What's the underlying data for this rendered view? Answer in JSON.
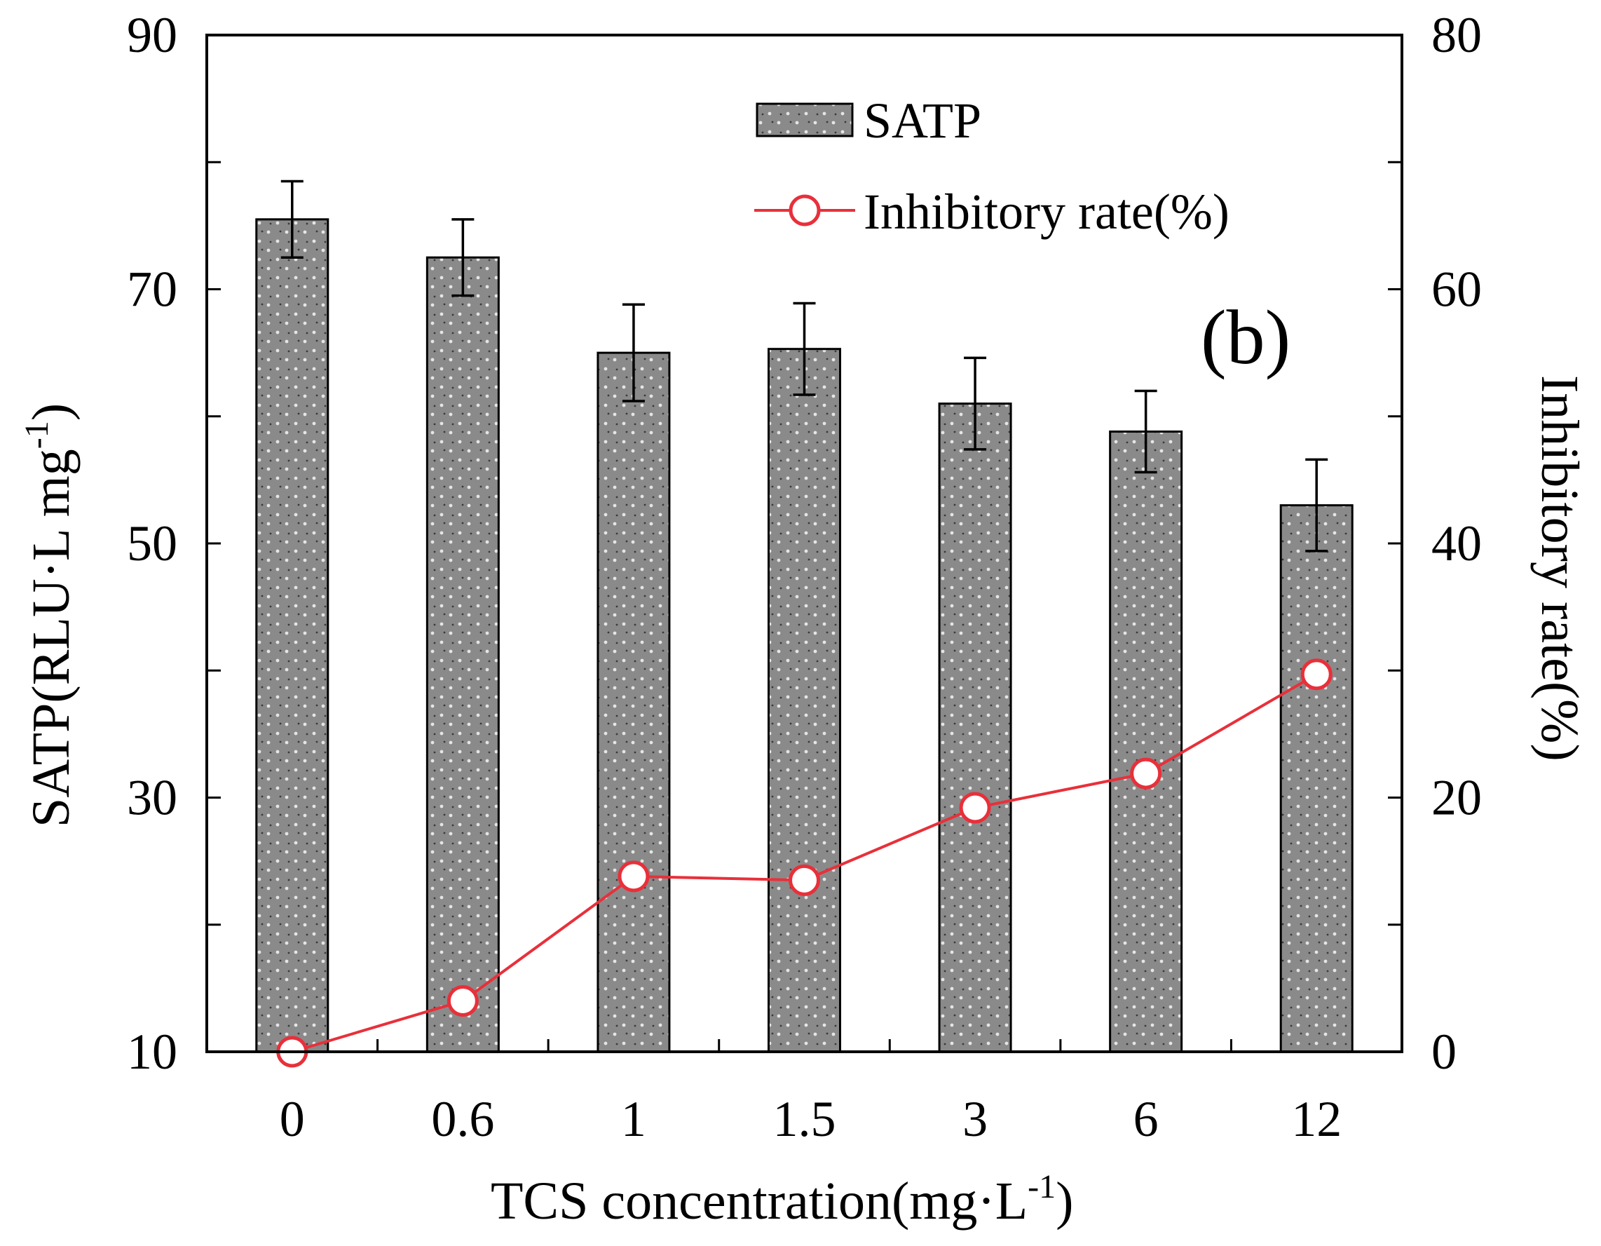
{
  "chart_data": {
    "type": "bar+line",
    "panel_label": "(b)",
    "xlabel": "TCS concentration(mg·L",
    "xlabel_sup": "-1",
    "xlabel_end": ")",
    "ylabel_left": "SATP(RLU·L mg",
    "ylabel_left_sup": "-1",
    "ylabel_left_end": ")",
    "ylabel_right": "Inhibitory rate(%)",
    "categories": [
      "0",
      "0.6",
      "1",
      "1.5",
      "3",
      "6",
      "12"
    ],
    "left_axis": {
      "ylim": [
        10,
        90
      ],
      "tick_labels": [
        "10",
        "30",
        "50",
        "70",
        "90"
      ],
      "tick_values": [
        10,
        20,
        30,
        40,
        50,
        60,
        70,
        80,
        90
      ]
    },
    "right_axis": {
      "ylim": [
        0,
        80
      ],
      "tick_labels": [
        "0",
        "20",
        "40",
        "60",
        "80"
      ],
      "tick_values": [
        0,
        10,
        20,
        30,
        40,
        50,
        60,
        70,
        80
      ]
    },
    "series": [
      {
        "name": "SATP",
        "kind": "bar",
        "axis": "left",
        "values": [
          75.5,
          72.5,
          65.0,
          65.3,
          61.0,
          58.8,
          53.0
        ],
        "errors": [
          3.0,
          3.0,
          3.8,
          3.6,
          3.6,
          3.2,
          3.6
        ],
        "color": "#808080"
      },
      {
        "name": "Inhibitory rate(%)",
        "kind": "line",
        "axis": "right",
        "values": [
          0.0,
          4.0,
          13.8,
          13.5,
          19.2,
          21.9,
          29.7
        ],
        "color": "#e8303a"
      }
    ],
    "legend_position": "top-center"
  }
}
